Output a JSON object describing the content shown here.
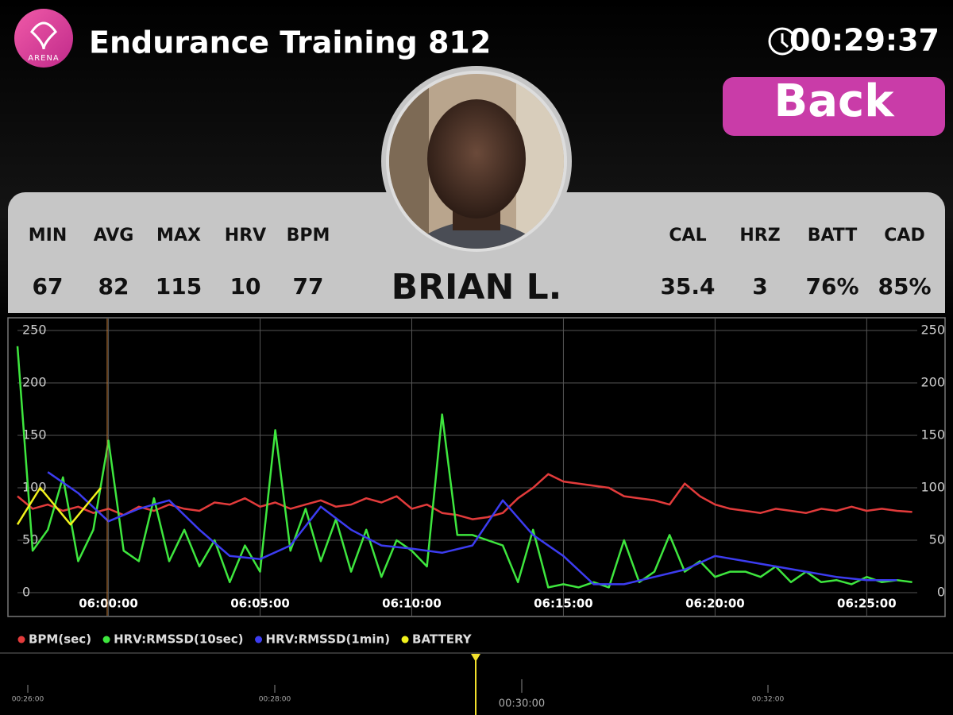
{
  "header": {
    "logo_text": "ARENA",
    "title": "Endurance Training 812",
    "timer": "00:29:37",
    "back_button": "Back"
  },
  "athlete": {
    "name": "BRIAN L.",
    "stats_left": [
      {
        "label": "MIN",
        "value": "67"
      },
      {
        "label": "AVG",
        "value": "82"
      },
      {
        "label": "MAX",
        "value": "115"
      },
      {
        "label": "HRV",
        "value": "10"
      },
      {
        "label": "BPM",
        "value": "77"
      }
    ],
    "stats_right": [
      {
        "label": "CAL",
        "value": "35.4"
      },
      {
        "label": "HRZ",
        "value": "3"
      },
      {
        "label": "BATT",
        "value": "76%"
      },
      {
        "label": "CAD",
        "value": "85%"
      }
    ]
  },
  "chart_data": {
    "type": "line",
    "xlim": [
      "05:57:00",
      "06:26:40"
    ],
    "xticks": [
      "06:00:00",
      "06:05:00",
      "06:10:00",
      "06:15:00",
      "06:20:00",
      "06:25:00"
    ],
    "ylim": [
      0,
      250
    ],
    "yticks": [
      0,
      50,
      100,
      150,
      200,
      250
    ],
    "y2lim": [
      0,
      250
    ],
    "y2ticks": [
      0,
      50,
      100,
      150,
      200,
      250
    ],
    "grid": true,
    "series": [
      {
        "name": "BPM(sec)",
        "color": "#e23b3b",
        "x": [
          "05:57:00",
          "05:57:30",
          "05:58:00",
          "05:58:30",
          "05:59:00",
          "05:59:30",
          "06:00:00",
          "06:00:30",
          "06:01:00",
          "06:01:30",
          "06:02:00",
          "06:02:30",
          "06:03:00",
          "06:03:30",
          "06:04:00",
          "06:04:30",
          "06:05:00",
          "06:05:30",
          "06:06:00",
          "06:06:30",
          "06:07:00",
          "06:07:30",
          "06:08:00",
          "06:08:30",
          "06:09:00",
          "06:09:30",
          "06:10:00",
          "06:10:30",
          "06:11:00",
          "06:11:30",
          "06:12:00",
          "06:12:30",
          "06:13:00",
          "06:13:30",
          "06:14:00",
          "06:14:30",
          "06:15:00",
          "06:15:30",
          "06:16:00",
          "06:16:30",
          "06:17:00",
          "06:17:30",
          "06:18:00",
          "06:18:30",
          "06:19:00",
          "06:19:30",
          "06:20:00",
          "06:20:30",
          "06:21:00",
          "06:21:30",
          "06:22:00",
          "06:22:30",
          "06:23:00",
          "06:23:30",
          "06:24:00",
          "06:24:30",
          "06:25:00",
          "06:25:30",
          "06:26:00",
          "06:26:30"
        ],
        "values": [
          92,
          80,
          84,
          78,
          82,
          76,
          80,
          74,
          82,
          78,
          84,
          80,
          78,
          86,
          84,
          90,
          82,
          86,
          80,
          84,
          88,
          82,
          84,
          90,
          86,
          92,
          80,
          84,
          76,
          74,
          70,
          72,
          76,
          90,
          100,
          113,
          106,
          104,
          102,
          100,
          92,
          90,
          88,
          84,
          104,
          92,
          84,
          80,
          78,
          76,
          80,
          78,
          76,
          80,
          78,
          82,
          78,
          80,
          78,
          77
        ]
      },
      {
        "name": "HRV:RMSSD(10sec)",
        "color": "#3ee63e",
        "x": [
          "05:57:00",
          "05:57:30",
          "05:58:00",
          "05:58:30",
          "05:59:00",
          "05:59:30",
          "06:00:00",
          "06:00:30",
          "06:01:00",
          "06:01:30",
          "06:02:00",
          "06:02:30",
          "06:03:00",
          "06:03:30",
          "06:04:00",
          "06:04:30",
          "06:05:00",
          "06:05:30",
          "06:06:00",
          "06:06:30",
          "06:07:00",
          "06:07:30",
          "06:08:00",
          "06:08:30",
          "06:09:00",
          "06:09:30",
          "06:10:00",
          "06:10:30",
          "06:11:00",
          "06:11:30",
          "06:12:00",
          "06:12:30",
          "06:13:00",
          "06:13:30",
          "06:14:00",
          "06:14:30",
          "06:15:00",
          "06:15:30",
          "06:16:00",
          "06:16:30",
          "06:17:00",
          "06:17:30",
          "06:18:00",
          "06:18:30",
          "06:19:00",
          "06:19:30",
          "06:20:00",
          "06:20:30",
          "06:21:00",
          "06:21:30",
          "06:22:00",
          "06:22:30",
          "06:23:00",
          "06:23:30",
          "06:24:00",
          "06:24:30",
          "06:25:00",
          "06:25:30",
          "06:26:00",
          "06:26:30"
        ],
        "values": [
          235,
          40,
          60,
          110,
          30,
          60,
          145,
          40,
          30,
          90,
          30,
          60,
          25,
          50,
          10,
          45,
          20,
          155,
          40,
          80,
          30,
          70,
          20,
          60,
          15,
          50,
          40,
          25,
          170,
          55,
          55,
          50,
          45,
          10,
          60,
          5,
          8,
          5,
          10,
          5,
          50,
          10,
          20,
          55,
          20,
          30,
          15,
          20,
          20,
          15,
          25,
          10,
          20,
          10,
          12,
          8,
          15,
          10,
          12,
          10
        ]
      },
      {
        "name": "HRV:RMSSD(1min)",
        "color": "#3c3cf0",
        "x": [
          "05:58:00",
          "05:59:00",
          "06:00:00",
          "06:01:00",
          "06:02:00",
          "06:03:00",
          "06:04:00",
          "06:05:00",
          "06:06:00",
          "06:07:00",
          "06:08:00",
          "06:09:00",
          "06:10:00",
          "06:11:00",
          "06:12:00",
          "06:13:00",
          "06:14:00",
          "06:15:00",
          "06:16:00",
          "06:17:00",
          "06:18:00",
          "06:19:00",
          "06:20:00",
          "06:21:00",
          "06:22:00",
          "06:23:00",
          "06:24:00",
          "06:25:00",
          "06:26:00"
        ],
        "values": [
          115,
          95,
          68,
          80,
          88,
          60,
          35,
          32,
          45,
          82,
          60,
          45,
          42,
          38,
          45,
          88,
          55,
          35,
          8,
          8,
          15,
          22,
          35,
          30,
          25,
          20,
          15,
          12,
          12
        ]
      },
      {
        "name": "BATTERY",
        "color": "#f2f21c",
        "x": [
          "05:57:00",
          "05:57:45",
          "05:58:45",
          "05:59:45"
        ],
        "values": [
          65,
          100,
          65,
          100
        ]
      }
    ]
  },
  "timeline": {
    "labels": [
      "00:26:00",
      "00:28:00",
      "00:30:00",
      "00:32:00"
    ]
  }
}
